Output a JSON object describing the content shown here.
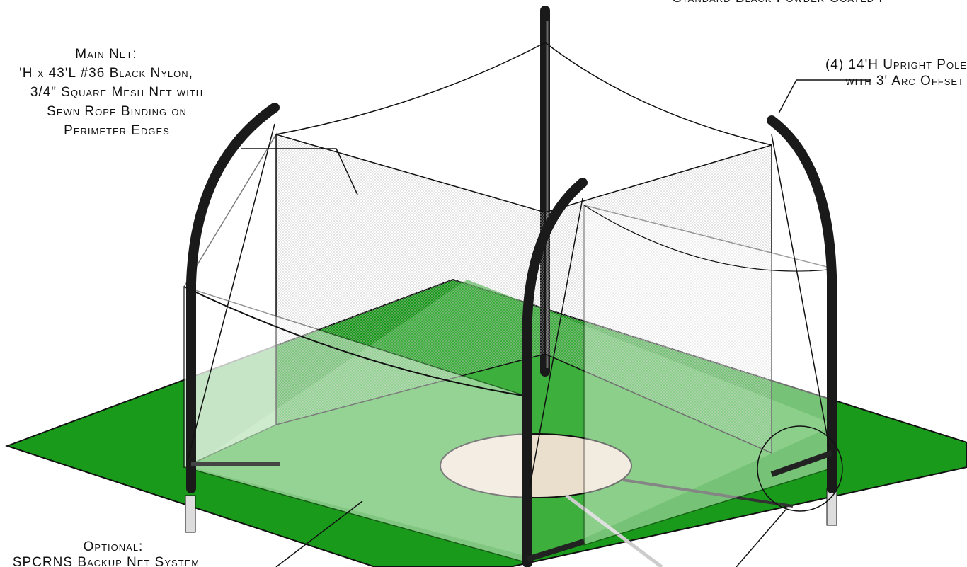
{
  "labels": {
    "top_note": "Standard Black Powder Coated F",
    "main_net": {
      "title": "Main Net:",
      "lines": [
        "'H x 43'L #36 Black Nylon,",
        "3/4\" Square Mesh Net with",
        "Sewn Rope Binding on",
        "Perimeter Edges"
      ]
    },
    "poles": {
      "lines": [
        "(4) 14'H Upright Pole",
        "with 3' Arc Offset"
      ]
    },
    "optional": {
      "title": "Optional:",
      "lines": [
        "SPCRNS Backup Net System"
      ]
    }
  }
}
